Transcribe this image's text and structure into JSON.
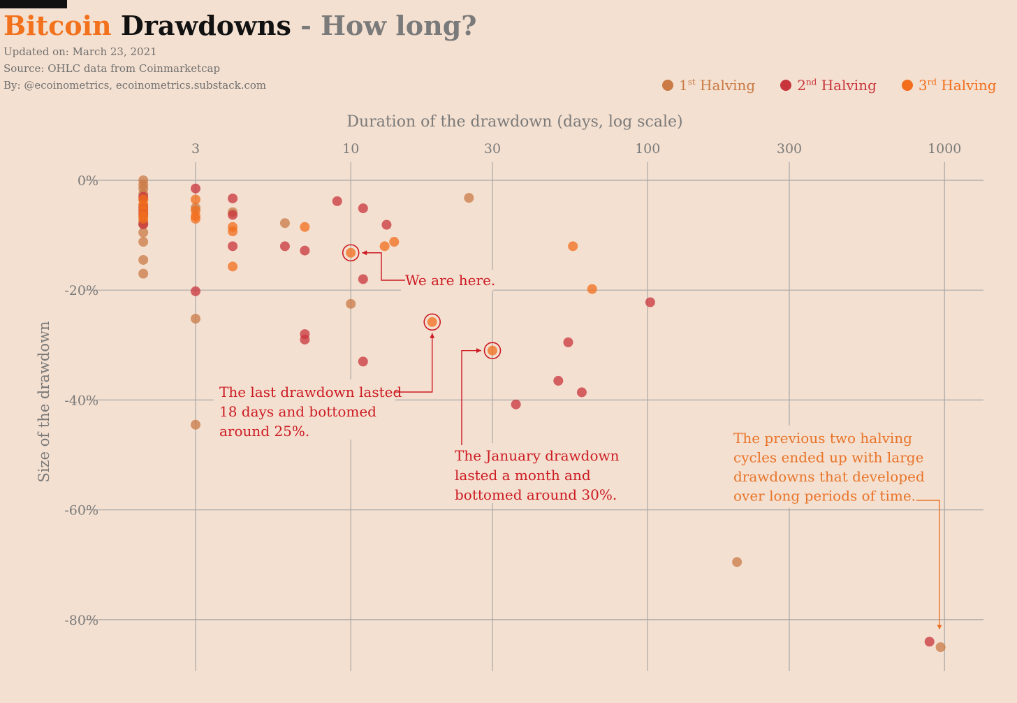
{
  "header": {
    "title_part1": "Bitcoin",
    "title_part2": "Drawdowns",
    "title_part3": "- How long?",
    "updated": "Updated on: March 23, 2021",
    "source": "Source: OHLC data from Coinmarketcap",
    "by": "By: @ecoinometrics, ecoinometrics.substack.com"
  },
  "legend": [
    {
      "ordinal": "1",
      "sup": "st",
      "label": "Halving",
      "color": "#c97a45"
    },
    {
      "ordinal": "2",
      "sup": "nd",
      "label": "Halving",
      "color": "#c8343c"
    },
    {
      "ordinal": "3",
      "sup": "rd",
      "label": "Halving",
      "color": "#f26e1c"
    }
  ],
  "colors": {
    "grid": "#a8a8a8",
    "axis_text": "#7a7a7a",
    "annotation_red": "#cc1a22",
    "annotation_orange": "#e8742a",
    "background": "#f4e0d0"
  },
  "chart_data": {
    "type": "scatter",
    "xlabel": "Duration of the drawdown (days, log scale)",
    "ylabel": "Size of the drawdown",
    "x_scale": "log",
    "xlim": [
      1.85,
      1120
    ],
    "ylim": [
      -89,
      0
    ],
    "x_ticks": [
      {
        "value": 3,
        "label": "3"
      },
      {
        "value": 10,
        "label": "10"
      },
      {
        "value": 30,
        "label": "30"
      },
      {
        "value": 100,
        "label": "100"
      },
      {
        "value": 300,
        "label": "300"
      },
      {
        "value": 1000,
        "label": "1000"
      }
    ],
    "y_ticks": [
      {
        "value": 0,
        "label": "0%"
      },
      {
        "value": -20,
        "label": "-20%"
      },
      {
        "value": -40,
        "label": "-40%"
      },
      {
        "value": -60,
        "label": "-60%"
      },
      {
        "value": -80,
        "label": "-80%"
      }
    ],
    "grid": true,
    "legend_position": "top-right",
    "series": [
      {
        "name": "1st Halving",
        "points": [
          [
            2,
            0
          ],
          [
            2,
            -0.8
          ],
          [
            2,
            -1.5
          ],
          [
            2,
            -2.5
          ],
          [
            2,
            -3.5
          ],
          [
            2,
            -4.5
          ],
          [
            2,
            -5.5
          ],
          [
            2,
            -6.5
          ],
          [
            2,
            -7.5
          ],
          [
            2,
            -8
          ],
          [
            2,
            -9.5
          ],
          [
            2,
            -11.2
          ],
          [
            2,
            -14.5
          ],
          [
            2,
            -17
          ],
          [
            3,
            -5
          ],
          [
            3,
            -25.2
          ],
          [
            3,
            -44.5
          ],
          [
            4,
            -5.8
          ],
          [
            6,
            -7.8
          ],
          [
            10,
            -22.5
          ],
          [
            25,
            -3.2
          ],
          [
            200,
            -69.5
          ],
          [
            970,
            -85
          ]
        ]
      },
      {
        "name": "2nd Halving",
        "points": [
          [
            2,
            -3
          ],
          [
            2,
            -5
          ],
          [
            2,
            -6
          ],
          [
            2,
            -8
          ],
          [
            3,
            -1.5
          ],
          [
            3,
            -20.2
          ],
          [
            4,
            -3.3
          ],
          [
            4,
            -6.3
          ],
          [
            4,
            -12
          ],
          [
            6,
            -12
          ],
          [
            7,
            -12.8
          ],
          [
            7,
            -28
          ],
          [
            7,
            -29
          ],
          [
            9,
            -3.8
          ],
          [
            11,
            -5.1
          ],
          [
            11,
            -18
          ],
          [
            11,
            -33
          ],
          [
            13.2,
            -8.1
          ],
          [
            36,
            -40.8
          ],
          [
            50,
            -36.5
          ],
          [
            54,
            -29.5
          ],
          [
            60,
            -38.6
          ],
          [
            102,
            -22.2
          ],
          [
            890,
            -84
          ]
        ]
      },
      {
        "name": "3rd Halving",
        "points": [
          [
            2,
            -3.5
          ],
          [
            2,
            -4.5
          ],
          [
            2,
            -5.5
          ],
          [
            2,
            -6.5
          ],
          [
            2,
            -7
          ],
          [
            3,
            -3.5
          ],
          [
            3,
            -5.5
          ],
          [
            3,
            -6.5
          ],
          [
            3,
            -7
          ],
          [
            4,
            -8.5
          ],
          [
            4,
            -9.3
          ],
          [
            4,
            -15.7
          ],
          [
            7,
            -8.5
          ],
          [
            10,
            -13.2
          ],
          [
            13,
            -12
          ],
          [
            14,
            -11.2
          ],
          [
            18.8,
            -25.8
          ],
          [
            30,
            -31
          ],
          [
            56,
            -12
          ],
          [
            65,
            -19.8
          ]
        ]
      }
    ],
    "highlighted": [
      {
        "x": 10,
        "y": -13.2
      },
      {
        "x": 18.8,
        "y": -25.8
      },
      {
        "x": 30,
        "y": -31
      }
    ],
    "annotations": [
      {
        "lines": [
          "We are here."
        ],
        "color": "red"
      },
      {
        "lines": [
          "The last drawdown lasted",
          "18 days and bottomed",
          "around 25%."
        ],
        "color": "red"
      },
      {
        "lines": [
          "The January drawdown",
          "lasted a month and",
          "bottomed around 30%."
        ],
        "color": "red"
      },
      {
        "lines": [
          "The previous two halving",
          "cycles ended up with large",
          "drawdowns that developed",
          "over long periods of time."
        ],
        "color": "orange"
      }
    ]
  }
}
